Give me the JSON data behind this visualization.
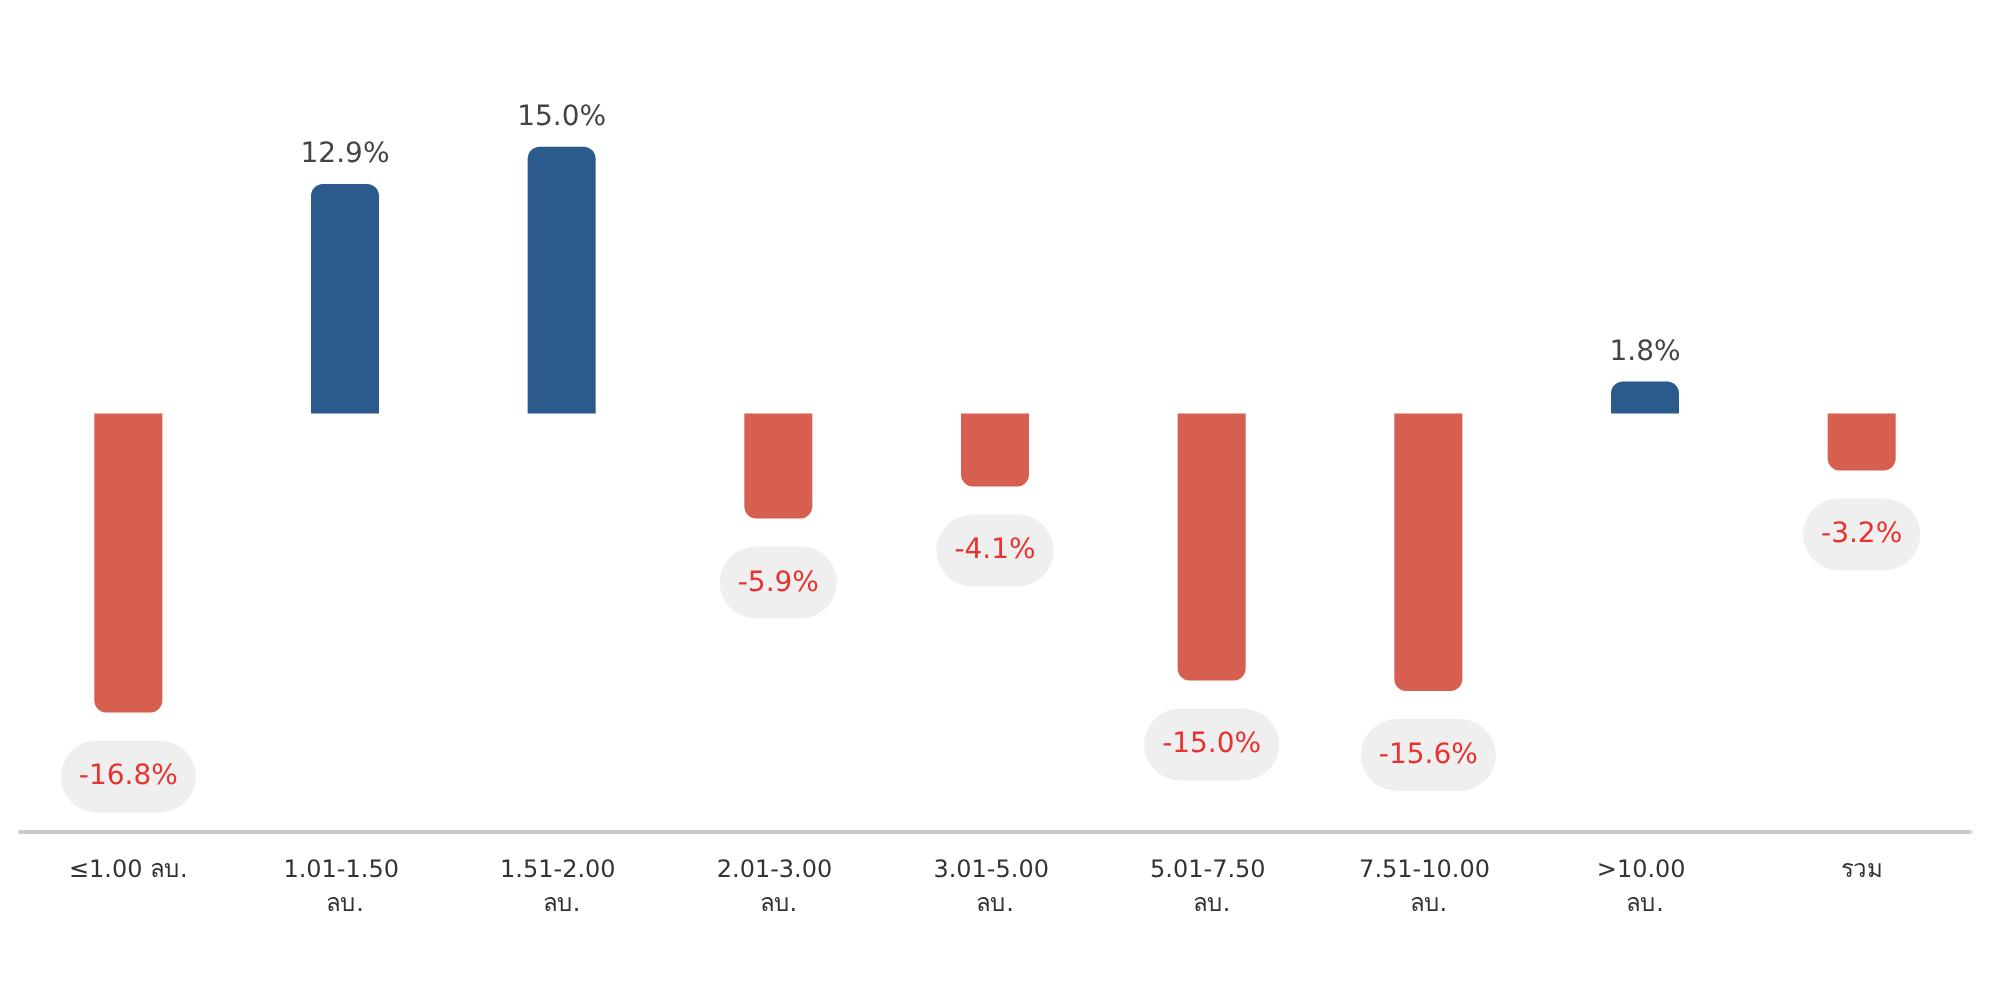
{
  "chart_data": {
    "type": "bar",
    "categories": [
      "≤1.00 ลบ.",
      "1.01-1.50 ลบ.",
      "1.51-2.00 ลบ.",
      "2.01-3.00 ลบ.",
      "3.01-5.00 ลบ.",
      "5.01-7.50 ลบ.",
      "7.51-10.00 ลบ.",
      ">10.00 ลบ.",
      "รวม"
    ],
    "values": [
      -16.8,
      12.9,
      15.0,
      -5.9,
      -4.1,
      -15.0,
      -15.6,
      1.8,
      -3.2
    ],
    "colors": [
      "#d65f4f",
      "#2b5a8c",
      "#2b5a8c",
      "#d65f4f",
      "#d65f4f",
      "#d65f4f",
      "#d65f4f",
      "#2b5a8c",
      "#d65f4f"
    ],
    "value_labels": [
      "-16.8%",
      "12.9%",
      "15.0%",
      "-5.9%",
      "-4.1%",
      "-15.0%",
      "-15.6%",
      "1.8%",
      "-3.2%"
    ]
  }
}
